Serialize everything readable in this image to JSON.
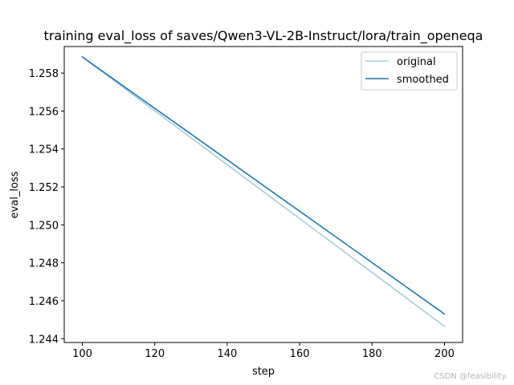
{
  "chart_data": {
    "type": "line",
    "title": "training eval_loss of saves/Qwen3-VL-2B-Instruct/lora/train_openeqa",
    "xlabel": "step",
    "ylabel": "eval_loss",
    "xlim": [
      95,
      205
    ],
    "ylim": [
      1.2438,
      1.2594
    ],
    "x_ticks": [
      100,
      120,
      140,
      160,
      180,
      200
    ],
    "x_tick_labels": [
      "100",
      "120",
      "140",
      "160",
      "180",
      "200"
    ],
    "y_ticks": [
      1.244,
      1.246,
      1.248,
      1.25,
      1.252,
      1.254,
      1.256,
      1.258
    ],
    "y_tick_labels": [
      "1.244",
      "1.246",
      "1.248",
      "1.250",
      "1.252",
      "1.254",
      "1.256",
      "1.258"
    ],
    "grid": false,
    "legend_position": "top-right",
    "series": [
      {
        "name": "original",
        "color": "#a6cde4",
        "x": [
          100,
          200
        ],
        "y": [
          1.25885,
          1.24465
        ]
      },
      {
        "name": "smoothed",
        "color": "#1f77b4",
        "x": [
          100,
          200
        ],
        "y": [
          1.25885,
          1.2453
        ]
      }
    ]
  },
  "watermark": "CSDN @feasibility."
}
